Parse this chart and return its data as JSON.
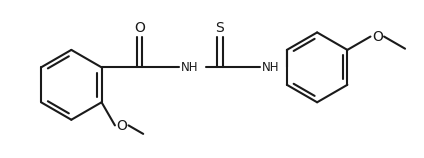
{
  "bg_color": "#ffffff",
  "line_color": "#1a1a1a",
  "line_width": 1.5,
  "font_size": 8.5,
  "figsize": [
    4.24,
    1.58
  ],
  "dpi": 100,
  "xlim": [
    0,
    8.5
  ],
  "ylim": [
    0,
    3.2
  ]
}
